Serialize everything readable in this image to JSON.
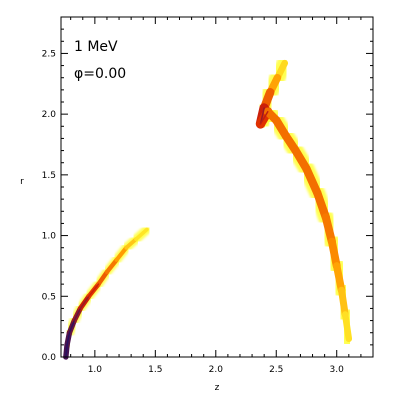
{
  "chart_data": {
    "type": "heatmap",
    "title": "",
    "xlabel": "z",
    "ylabel": "r",
    "xlim": [
      0.72,
      3.3
    ],
    "ylim": [
      0.0,
      2.8
    ],
    "x_ticks": [
      "1.0",
      "1.5",
      "2.0",
      "2.5",
      "3.0"
    ],
    "x_tick_values": [
      1.0,
      1.5,
      2.0,
      2.5,
      3.0
    ],
    "y_ticks": [
      "0.0",
      "0.5",
      "1.0",
      "1.5",
      "2.0",
      "2.5"
    ],
    "y_tick_values": [
      0.0,
      0.5,
      1.0,
      1.5,
      2.0,
      2.5
    ],
    "annotations": [
      "1 MeV",
      "φ=0.00"
    ],
    "grid": false,
    "colors": {
      "low": "#ffff33",
      "mid": "#ff9900",
      "high": "#dd2200",
      "peak": "#2a1060"
    },
    "series": [
      {
        "points": [
          [
            0.76,
            0.0,
            0.95
          ],
          [
            0.77,
            0.1,
            0.95
          ],
          [
            0.79,
            0.2,
            0.92
          ],
          [
            0.83,
            0.3,
            0.85
          ],
          [
            0.88,
            0.4,
            0.75
          ],
          [
            0.95,
            0.5,
            0.65
          ],
          [
            1.03,
            0.6,
            0.55
          ],
          [
            1.1,
            0.7,
            0.45
          ],
          [
            1.18,
            0.8,
            0.4
          ],
          [
            1.26,
            0.9,
            0.25
          ],
          [
            1.34,
            0.97,
            0.12
          ],
          [
            1.43,
            1.05,
            0.05
          ]
        ]
      },
      {
        "points": [
          [
            2.57,
            2.42,
            0.05
          ],
          [
            2.51,
            2.3,
            0.2
          ],
          [
            2.45,
            2.18,
            0.4
          ],
          [
            2.4,
            2.05,
            0.6
          ],
          [
            2.37,
            1.92,
            0.8
          ],
          [
            2.43,
            2.02,
            0.45
          ],
          [
            2.5,
            1.95,
            0.45
          ],
          [
            2.58,
            1.82,
            0.45
          ],
          [
            2.66,
            1.7,
            0.45
          ],
          [
            2.75,
            1.55,
            0.45
          ],
          [
            2.84,
            1.35,
            0.45
          ],
          [
            2.91,
            1.15,
            0.45
          ],
          [
            2.96,
            0.95,
            0.4
          ],
          [
            3.0,
            0.75,
            0.35
          ],
          [
            3.04,
            0.55,
            0.25
          ],
          [
            3.07,
            0.35,
            0.15
          ],
          [
            3.1,
            0.15,
            0.05
          ]
        ]
      }
    ]
  }
}
